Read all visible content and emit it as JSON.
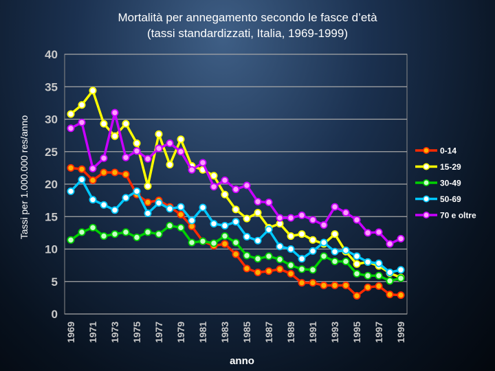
{
  "chart_data": {
    "type": "line",
    "title": "Mortalità per annegamento secondo le fasce d’età",
    "subtitle": "(tassi standardizzati, Italia, 1969-1999)",
    "xlabel": "anno",
    "ylabel": "Tassi per 1.000.000 res/anno",
    "ylim": [
      0,
      40
    ],
    "yticks": [
      0,
      5,
      10,
      15,
      20,
      25,
      30,
      35,
      40
    ],
    "x": [
      1969,
      1970,
      1971,
      1972,
      1973,
      1974,
      1975,
      1976,
      1977,
      1978,
      1979,
      1980,
      1981,
      1982,
      1983,
      1984,
      1985,
      1986,
      1987,
      1988,
      1989,
      1990,
      1991,
      1992,
      1993,
      1994,
      1995,
      1996,
      1997,
      1998,
      1999
    ],
    "xtick_labels": [
      "1969",
      "1971",
      "1973",
      "1975",
      "1977",
      "1979",
      "1981",
      "1983",
      "1985",
      "1987",
      "1989",
      "1991",
      "1993",
      "1995",
      "1997",
      "1999"
    ],
    "grid": "horizontal",
    "legend_position": "right",
    "series": [
      {
        "name": "0-14",
        "color": "#ff2a00",
        "marker_fill": "#ffb000",
        "values": [
          22.5,
          22.3,
          20.6,
          21.8,
          21.8,
          21.5,
          18.4,
          17.2,
          17.5,
          16.5,
          15.3,
          13.5,
          11.2,
          10.5,
          10.8,
          9.2,
          7.0,
          6.4,
          6.6,
          6.9,
          6.2,
          4.8,
          4.8,
          4.4,
          4.4,
          4.4,
          2.8,
          4.1,
          4.3,
          3.0,
          2.9
        ]
      },
      {
        "name": "15-29",
        "color": "#ffff00",
        "marker_fill": "#ffffff",
        "values": [
          30.8,
          32.2,
          34.4,
          29.3,
          27.4,
          29.3,
          26.3,
          19.7,
          27.7,
          23.0,
          26.9,
          22.8,
          22.2,
          21.3,
          18.4,
          16.1,
          14.7,
          15.6,
          13.3,
          13.9,
          12.0,
          12.3,
          11.4,
          10.8,
          12.3,
          9.6,
          7.7,
          8.0,
          7.4,
          6.3,
          5.6
        ]
      },
      {
        "name": "30-49",
        "color": "#00d000",
        "marker_fill": "#c8ffc8",
        "values": [
          11.4,
          12.6,
          13.3,
          12.0,
          12.3,
          12.6,
          11.8,
          12.6,
          12.3,
          13.6,
          13.3,
          11.0,
          11.2,
          10.9,
          12.0,
          11.0,
          9.0,
          8.5,
          8.9,
          8.4,
          7.5,
          6.9,
          6.8,
          8.9,
          8.1,
          8.1,
          6.2,
          5.9,
          5.9,
          5.1,
          5.5
        ]
      },
      {
        "name": "50-69",
        "color": "#00c8ff",
        "marker_fill": "#ffffff",
        "values": [
          18.9,
          20.7,
          17.6,
          16.8,
          16.0,
          17.9,
          18.9,
          15.5,
          17.1,
          16.2,
          16.5,
          14.4,
          16.4,
          13.9,
          13.6,
          14.2,
          11.9,
          11.3,
          13.0,
          10.4,
          10.0,
          8.5,
          9.7,
          11.0,
          9.6,
          9.8,
          8.9,
          8.0,
          7.8,
          6.4,
          6.8
        ]
      },
      {
        "name": "70 e oltre",
        "color": "#c800ff",
        "marker_fill": "#ff9cff",
        "values": [
          28.6,
          29.5,
          22.4,
          24.0,
          31.0,
          24.1,
          25.1,
          23.9,
          25.5,
          26.3,
          25.0,
          22.2,
          23.3,
          19.6,
          20.6,
          19.2,
          19.8,
          17.3,
          17.2,
          14.8,
          14.8,
          15.2,
          14.5,
          13.7,
          16.5,
          15.6,
          14.5,
          12.5,
          12.6,
          10.8,
          11.6
        ]
      }
    ]
  }
}
